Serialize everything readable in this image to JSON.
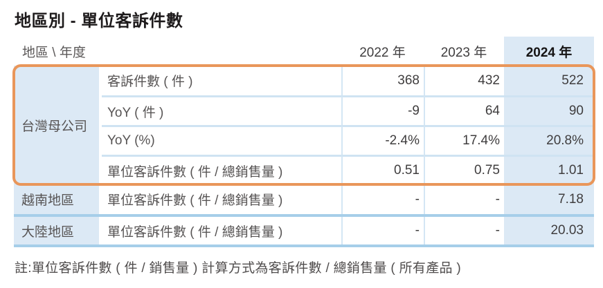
{
  "title": "地區別 - 單位客訴件數",
  "table": {
    "corner_label": "地區 \\ 年度",
    "years": [
      "2022 年",
      "2023 年",
      "2024 年"
    ],
    "groups": [
      {
        "region": "台灣母公司",
        "highlighted": true,
        "rows": [
          {
            "metric": "客訴件數 ( 件 )",
            "v2022": "368",
            "v2023": "432",
            "v2024": "522"
          },
          {
            "metric": "YoY ( 件 )",
            "v2022": "-9",
            "v2023": "64",
            "v2024": "90"
          },
          {
            "metric": "YoY (%)",
            "v2022": "-2.4%",
            "v2023": "17.4%",
            "v2024": "20.8%"
          },
          {
            "metric": "單位客訴件數 ( 件 / 總銷售量 )",
            "v2022": "0.51",
            "v2023": "0.75",
            "v2024": "1.01"
          }
        ]
      },
      {
        "region": "越南地區",
        "highlighted": false,
        "rows": [
          {
            "metric": "單位客訴件數 ( 件 / 總銷售量 )",
            "v2022": "-",
            "v2023": "-",
            "v2024": "7.18"
          }
        ]
      },
      {
        "region": "大陸地區",
        "highlighted": false,
        "rows": [
          {
            "metric": "單位客訴件數 ( 件 / 總銷售量 )",
            "v2022": "-",
            "v2023": "-",
            "v2024": "20.03"
          }
        ]
      }
    ]
  },
  "note": "註:單位客訴件數 ( 件 / 銷售量 ) 計算方式為客訴件數 / 總銷售量 ( 所有產品 )",
  "colors": {
    "accent_orange": "#e9965a",
    "highlight_blue": "#dce9f5",
    "divider_blue": "#a6cee9",
    "separator_blue": "#cfe3f2",
    "title_text": "#1d1a1b",
    "body_text": "#575454"
  }
}
